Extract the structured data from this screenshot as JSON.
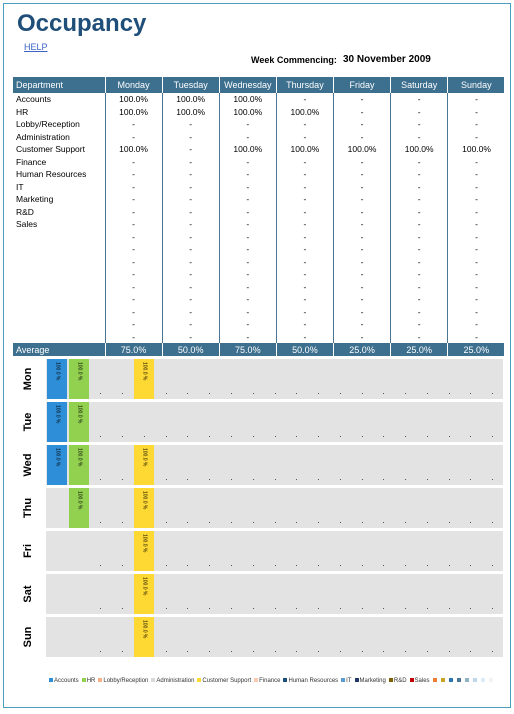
{
  "title": "Occupancy",
  "help": "HELP",
  "week": {
    "label": "Week Commencing:",
    "value": "30 November 2009"
  },
  "table": {
    "header": [
      "Department",
      "Monday",
      "Tuesday",
      "Wednesday",
      "Thursday",
      "Friday",
      "Saturday",
      "Sunday"
    ],
    "rows": [
      [
        "Accounts",
        "100.0%",
        "100.0%",
        "100.0%",
        "-",
        "-",
        "-",
        "-"
      ],
      [
        "HR",
        "100.0%",
        "100.0%",
        "100.0%",
        "100.0%",
        "-",
        "-",
        "-"
      ],
      [
        "Lobby/Reception",
        "-",
        "-",
        "-",
        "-",
        "-",
        "-",
        "-"
      ],
      [
        "Administration",
        "-",
        "-",
        "-",
        "-",
        "-",
        "-",
        "-"
      ],
      [
        "Customer Support",
        "100.0%",
        "-",
        "100.0%",
        "100.0%",
        "100.0%",
        "100.0%",
        "100.0%"
      ],
      [
        "Finance",
        "-",
        "-",
        "-",
        "-",
        "-",
        "-",
        "-"
      ],
      [
        "Human Resources",
        "-",
        "-",
        "-",
        "-",
        "-",
        "-",
        "-"
      ],
      [
        "IT",
        "-",
        "-",
        "-",
        "-",
        "-",
        "-",
        "-"
      ],
      [
        "Marketing",
        "-",
        "-",
        "-",
        "-",
        "-",
        "-",
        "-"
      ],
      [
        "R&D",
        "-",
        "-",
        "-",
        "-",
        "-",
        "-",
        "-"
      ],
      [
        "Sales",
        "-",
        "-",
        "-",
        "-",
        "-",
        "-",
        "-"
      ],
      [
        "",
        "-",
        "-",
        "-",
        "-",
        "-",
        "-",
        "-"
      ],
      [
        "",
        "-",
        "-",
        "-",
        "-",
        "-",
        "-",
        "-"
      ],
      [
        "",
        "-",
        "-",
        "-",
        "-",
        "-",
        "-",
        "-"
      ],
      [
        "",
        "-",
        "-",
        "-",
        "-",
        "-",
        "-",
        "-"
      ],
      [
        "",
        "-",
        "-",
        "-",
        "-",
        "-",
        "-",
        "-"
      ],
      [
        "",
        "-",
        "-",
        "-",
        "-",
        "-",
        "-",
        "-"
      ],
      [
        "",
        "-",
        "-",
        "-",
        "-",
        "-",
        "-",
        "-"
      ],
      [
        "",
        "-",
        "-",
        "-",
        "-",
        "-",
        "-",
        "-"
      ],
      [
        "",
        "-",
        "-",
        "-",
        "-",
        "-",
        "-",
        "-"
      ]
    ],
    "average": [
      "Average",
      "75.0%",
      "50.0%",
      "75.0%",
      "50.0%",
      "25.0%",
      "25.0%",
      "25.0%"
    ]
  },
  "chart_data": {
    "type": "bar",
    "days": [
      "Mon",
      "Tue",
      "Wed",
      "Thu",
      "Fri",
      "Sat",
      "Sun"
    ],
    "departments": [
      "Accounts",
      "HR",
      "Lobby/Reception",
      "Administration",
      "Customer Support",
      "Finance",
      "Human Resources",
      "IT",
      "Marketing",
      "R&D",
      "Sales"
    ],
    "colors": [
      "#2e8fd8",
      "#92d050",
      "#f4b183",
      "#d9d9d9",
      "#ffd933",
      "#f8cbad",
      "#1f4e79",
      "#5b9bd5",
      "#203864",
      "#7f6000",
      "#c00000"
    ],
    "bar_label": "100.0 %",
    "values": {
      "Mon": [
        100,
        100,
        0,
        0,
        100,
        0,
        0,
        0,
        0,
        0,
        0
      ],
      "Tue": [
        100,
        100,
        0,
        0,
        0,
        0,
        0,
        0,
        0,
        0,
        0
      ],
      "Wed": [
        100,
        100,
        0,
        0,
        100,
        0,
        0,
        0,
        0,
        0,
        0
      ],
      "Thu": [
        0,
        100,
        0,
        0,
        100,
        0,
        0,
        0,
        0,
        0,
        0
      ],
      "Fri": [
        0,
        0,
        0,
        0,
        100,
        0,
        0,
        0,
        0,
        0,
        0
      ],
      "Sat": [
        0,
        0,
        0,
        0,
        100,
        0,
        0,
        0,
        0,
        0,
        0
      ],
      "Sun": [
        0,
        0,
        0,
        0,
        100,
        0,
        0,
        0,
        0,
        0,
        0
      ]
    },
    "ylim": [
      0,
      100
    ],
    "legend_position": "bottom"
  },
  "legend_extra_colors": [
    "#ed7d31",
    "#c9a227",
    "#2e75b6",
    "#4a7592",
    "#8fb4c8",
    "#bdd7ee",
    "#deebf7",
    "#f2f2f2"
  ]
}
